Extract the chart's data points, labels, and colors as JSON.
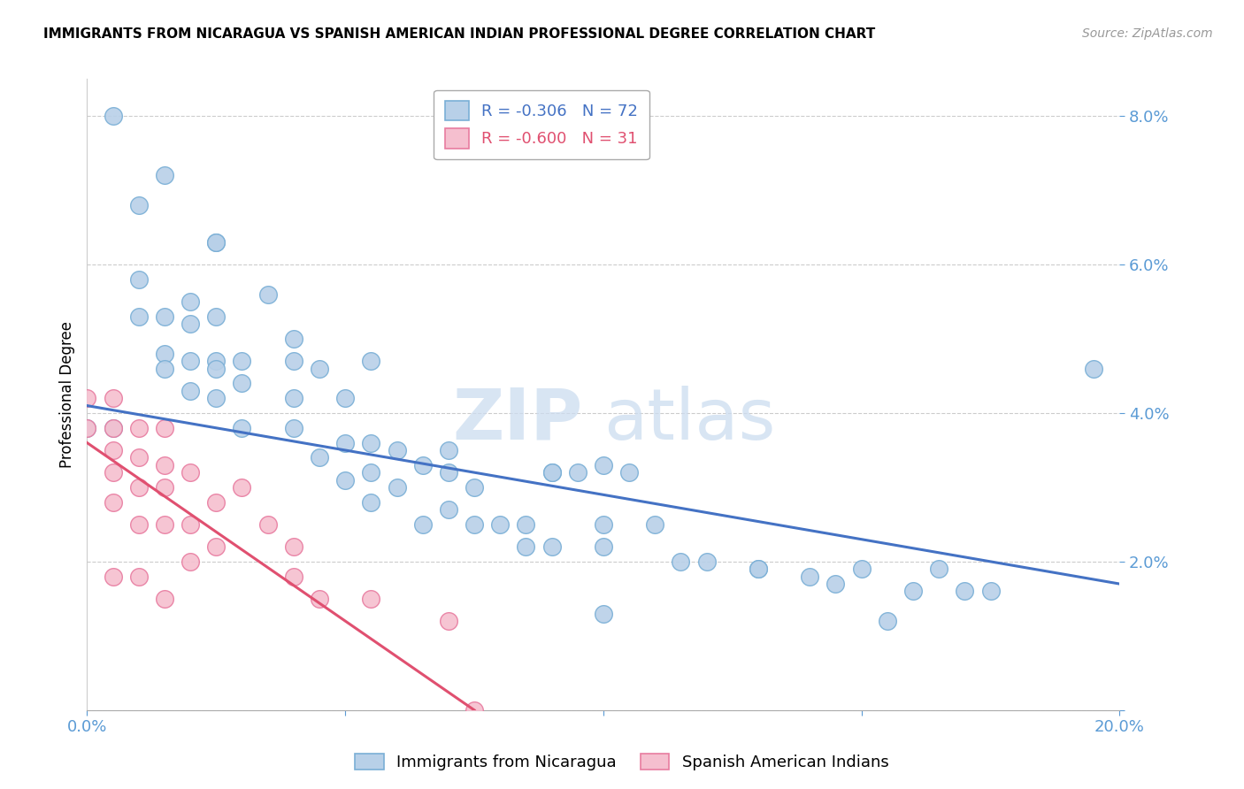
{
  "title": "IMMIGRANTS FROM NICARAGUA VS SPANISH AMERICAN INDIAN PROFESSIONAL DEGREE CORRELATION CHART",
  "source": "Source: ZipAtlas.com",
  "ylabel": "Professional Degree",
  "xlim": [
    0.0,
    0.2
  ],
  "ylim": [
    0.0,
    0.085
  ],
  "xticks": [
    0.0,
    0.05,
    0.1,
    0.15,
    0.2
  ],
  "xticklabels": [
    "0.0%",
    "",
    "",
    "",
    "20.0%"
  ],
  "yticks": [
    0.0,
    0.02,
    0.04,
    0.06,
    0.08
  ],
  "yticklabels": [
    "",
    "2.0%",
    "4.0%",
    "6.0%",
    "8.0%"
  ],
  "blue_color": "#b8d0e8",
  "blue_edge": "#7aafd6",
  "pink_color": "#f5bfcf",
  "pink_edge": "#e87ca0",
  "line_blue": "#4472c4",
  "line_pink": "#e05070",
  "legend_r_blue": "-0.306",
  "legend_n_blue": "72",
  "legend_r_pink": "-0.600",
  "legend_n_pink": "31",
  "label_blue": "Immigrants from Nicaragua",
  "label_pink": "Spanish American Indians",
  "watermark_zip": "ZIP",
  "watermark_atlas": "atlas",
  "blue_points_x": [
    0.01,
    0.015,
    0.02,
    0.02,
    0.025,
    0.025,
    0.025,
    0.01,
    0.015,
    0.015,
    0.02,
    0.025,
    0.025,
    0.03,
    0.03,
    0.03,
    0.035,
    0.04,
    0.04,
    0.04,
    0.045,
    0.045,
    0.05,
    0.05,
    0.05,
    0.055,
    0.055,
    0.055,
    0.06,
    0.06,
    0.065,
    0.065,
    0.07,
    0.07,
    0.07,
    0.075,
    0.075,
    0.08,
    0.085,
    0.09,
    0.09,
    0.095,
    0.1,
    0.1,
    0.1,
    0.105,
    0.11,
    0.115,
    0.12,
    0.13,
    0.13,
    0.14,
    0.145,
    0.15,
    0.16,
    0.165,
    0.17,
    0.175,
    0.0,
    0.005,
    0.005,
    0.01,
    0.015,
    0.02,
    0.025,
    0.04,
    0.055,
    0.085,
    0.09,
    0.1,
    0.155,
    0.195
  ],
  "blue_points_y": [
    0.068,
    0.072,
    0.055,
    0.052,
    0.063,
    0.063,
    0.047,
    0.058,
    0.053,
    0.048,
    0.047,
    0.053,
    0.046,
    0.047,
    0.044,
    0.038,
    0.056,
    0.047,
    0.042,
    0.038,
    0.046,
    0.034,
    0.042,
    0.036,
    0.031,
    0.036,
    0.032,
    0.028,
    0.035,
    0.03,
    0.033,
    0.025,
    0.035,
    0.032,
    0.027,
    0.03,
    0.025,
    0.025,
    0.025,
    0.032,
    0.022,
    0.032,
    0.033,
    0.025,
    0.022,
    0.032,
    0.025,
    0.02,
    0.02,
    0.019,
    0.019,
    0.018,
    0.017,
    0.019,
    0.016,
    0.019,
    0.016,
    0.016,
    0.038,
    0.08,
    0.038,
    0.053,
    0.046,
    0.043,
    0.042,
    0.05,
    0.047,
    0.022,
    0.032,
    0.013,
    0.012,
    0.046
  ],
  "pink_points_x": [
    0.0,
    0.0,
    0.005,
    0.005,
    0.005,
    0.005,
    0.005,
    0.005,
    0.01,
    0.01,
    0.01,
    0.01,
    0.01,
    0.015,
    0.015,
    0.015,
    0.015,
    0.015,
    0.02,
    0.02,
    0.02,
    0.025,
    0.025,
    0.03,
    0.035,
    0.04,
    0.04,
    0.045,
    0.055,
    0.07,
    0.075
  ],
  "pink_points_y": [
    0.042,
    0.038,
    0.042,
    0.038,
    0.035,
    0.032,
    0.028,
    0.018,
    0.038,
    0.034,
    0.03,
    0.025,
    0.018,
    0.038,
    0.033,
    0.03,
    0.025,
    0.015,
    0.032,
    0.025,
    0.02,
    0.028,
    0.022,
    0.03,
    0.025,
    0.022,
    0.018,
    0.015,
    0.015,
    0.012,
    0.0
  ],
  "blue_trendline_x": [
    0.0,
    0.2
  ],
  "blue_trendline_y": [
    0.041,
    0.017
  ],
  "pink_trendline_x": [
    0.0,
    0.075
  ],
  "pink_trendline_y": [
    0.036,
    0.0
  ]
}
